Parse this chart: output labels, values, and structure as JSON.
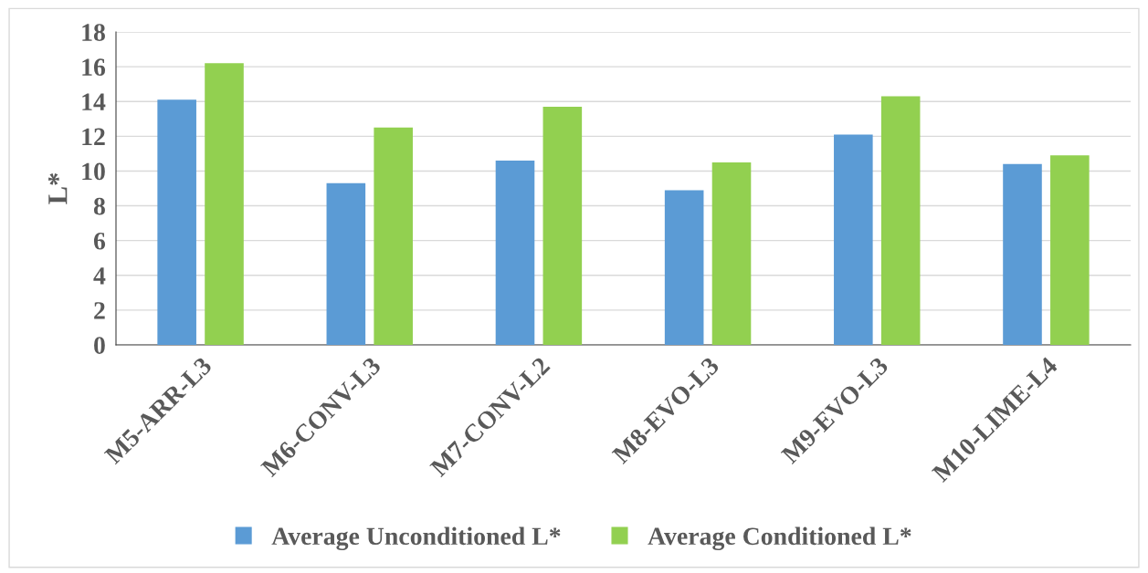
{
  "chart_data": {
    "type": "bar",
    "ylabel": "L*",
    "categories": [
      "M5-ARR-L3",
      "M6-CONV-L3",
      "M7-CONV-L2",
      "M8-EVO-L3",
      "M9-EVO-L3",
      "M10-LIME-L4"
    ],
    "series": [
      {
        "name": "Average Unconditioned L*",
        "color": "#5b9bd5",
        "values": [
          14.1,
          9.3,
          10.6,
          8.9,
          12.1,
          10.4
        ]
      },
      {
        "name": "Average Conditioned L*",
        "color": "#92d050",
        "values": [
          16.2,
          12.5,
          13.7,
          10.5,
          14.3,
          10.9
        ]
      }
    ],
    "ylim": [
      0,
      18
    ],
    "yticks": [
      0,
      2,
      4,
      6,
      8,
      10,
      12,
      14,
      16,
      18
    ],
    "grid": "y",
    "legend": "bottom"
  }
}
